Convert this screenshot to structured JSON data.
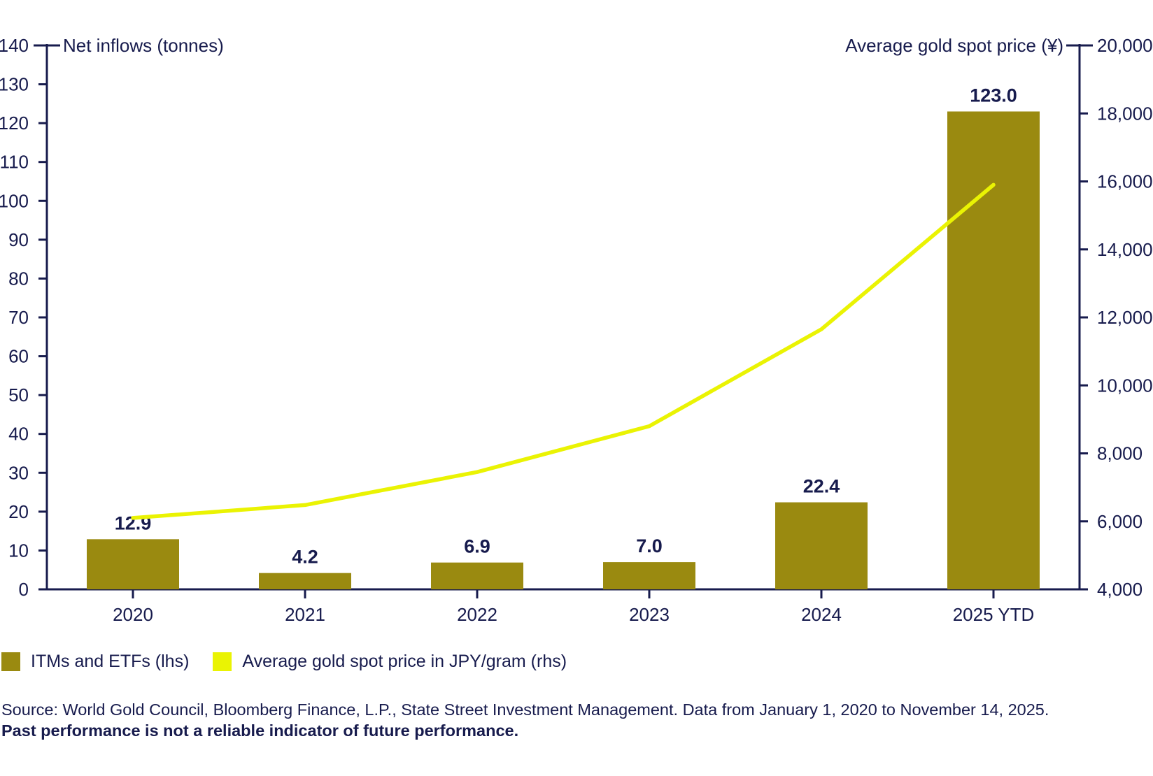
{
  "chart_data": {
    "type": "combo-bar-line",
    "categories": [
      "2020",
      "2021",
      "2022",
      "2023",
      "2024",
      "2025 YTD"
    ],
    "series": [
      {
        "name": "ITMs and ETFs (lhs)",
        "type": "bar",
        "axis": "lhs",
        "color": "#9A8A10",
        "values": [
          12.9,
          4.2,
          6.9,
          7.0,
          22.4,
          123.0
        ],
        "labels": [
          "12.9",
          "4.2",
          "6.9",
          "7.0",
          "22.4",
          "123.0"
        ]
      },
      {
        "name": "Average gold spot price in JPY/gram (rhs)",
        "type": "line",
        "axis": "rhs",
        "color": "#EAF303",
        "values": [
          6100,
          6480,
          7450,
          8800,
          11650,
          15900
        ]
      }
    ],
    "lhs_axis": {
      "title": "Net inflows (tonnes)",
      "min": 0,
      "max": 140,
      "step": 10
    },
    "rhs_axis": {
      "title": "Average gold spot price (¥)",
      "min": 4000,
      "max": 20000,
      "step": 2000,
      "tick_format": "comma"
    },
    "grid": false,
    "legend_position": "bottom-left"
  },
  "legend": {
    "items": [
      {
        "label": "ITMs and ETFs (lhs)",
        "color": "#9A8A10"
      },
      {
        "label": "Average gold spot price in JPY/gram (rhs)",
        "color": "#EAF303"
      }
    ]
  },
  "footer": {
    "source": "Source: World Gold Council, Bloomberg Finance, L.P., State Street Investment Management. Data from January 1, 2020 to November 14, 2025.",
    "disclaimer": "Past performance is not a reliable indicator of future performance."
  },
  "colors": {
    "text": "#171B4D",
    "axis": "#171B4D",
    "bar": "#9A8A10",
    "line": "#EAF303",
    "background": "#FFFFFF"
  }
}
